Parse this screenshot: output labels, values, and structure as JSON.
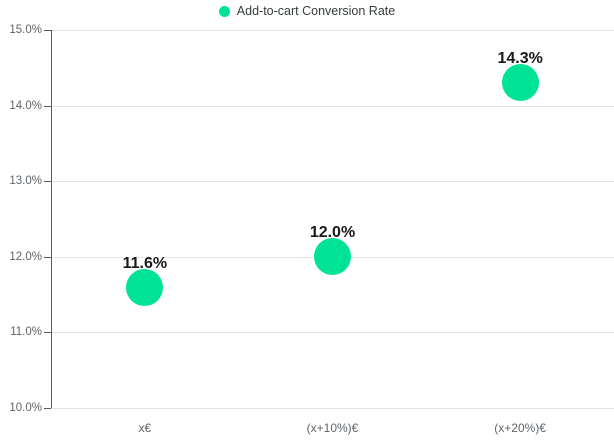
{
  "legend": {
    "label": "Add-to-cart Conversion Rate",
    "color": "#00E396"
  },
  "chart_data": {
    "type": "scatter",
    "title": "",
    "xlabel": "",
    "ylabel": "",
    "categories": [
      "x€",
      "(x+10%)€",
      "(x+20%)€"
    ],
    "series": [
      {
        "name": "Add-to-cart Conversion Rate",
        "values": [
          11.6,
          12.0,
          14.3
        ],
        "color": "#00E396"
      }
    ],
    "point_labels": [
      "11.6%",
      "12.0%",
      "14.3%"
    ],
    "ylim": [
      10,
      15
    ],
    "ytick_step": 1,
    "ytick_labels": [
      "15.0%",
      "14.0%",
      "13.0%",
      "12.0%",
      "11.0%",
      "10.0%"
    ],
    "grid": true,
    "legend_position": "top",
    "marker_diameter_px": 37
  },
  "colors": {
    "marker": "#00E396",
    "gridline": "#e3e3e3",
    "axis": "#595c5f",
    "tick_label": "#5f6468",
    "point_label": "#17191c",
    "legend_text": "#373d3f"
  }
}
